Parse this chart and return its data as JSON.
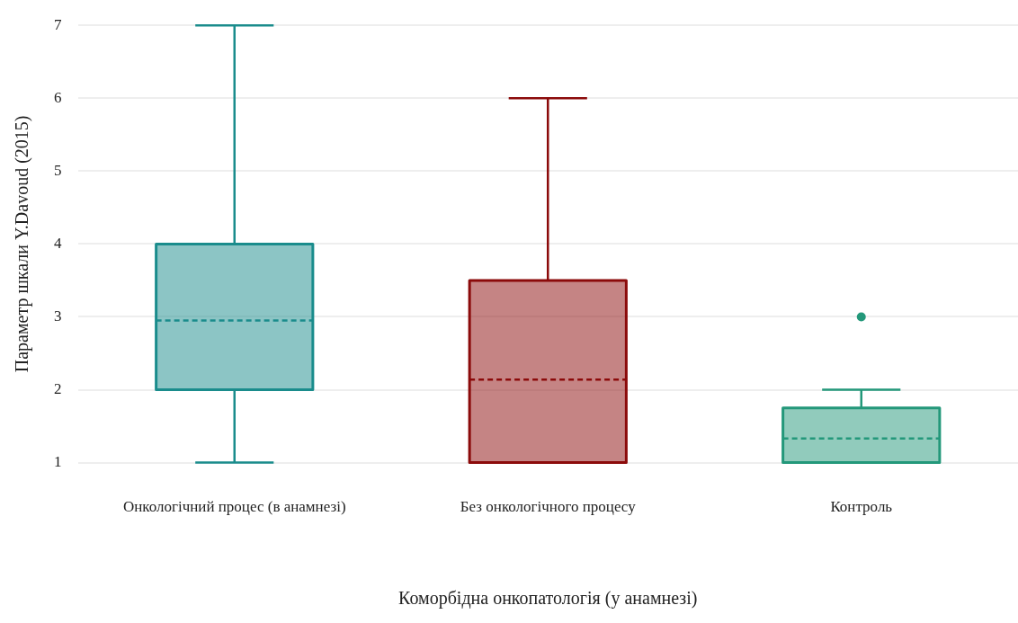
{
  "chart_data": {
    "type": "box",
    "xlabel": "Коморбідна онкопатологія (у анамнезі)",
    "ylabel": "Параметр шкали Y.Davoud (2015)",
    "categories": [
      "Онкологічний процес (в анамнезі)",
      "Без онкологічного процесу",
      "Контроль"
    ],
    "colors": [
      "#1a8c8c",
      "#8b0a0a",
      "#23987a"
    ],
    "boxes": [
      {
        "low": 1,
        "q1": 2,
        "median": 2,
        "q3": 4,
        "high": 7,
        "mean": 2.95
      },
      {
        "low": 1,
        "q1": 1,
        "median": 1,
        "q3": 3.5,
        "high": 6,
        "mean": 2.14
      },
      {
        "low": 1,
        "q1": 1,
        "median": 1,
        "q3": 1.75,
        "high": 2,
        "mean": 1.33,
        "outliers": [
          3
        ]
      }
    ],
    "ylim": [
      1,
      7
    ],
    "yticks": [
      1,
      2,
      3,
      4,
      5,
      6,
      7
    ],
    "grid": "y",
    "legend": false
  }
}
